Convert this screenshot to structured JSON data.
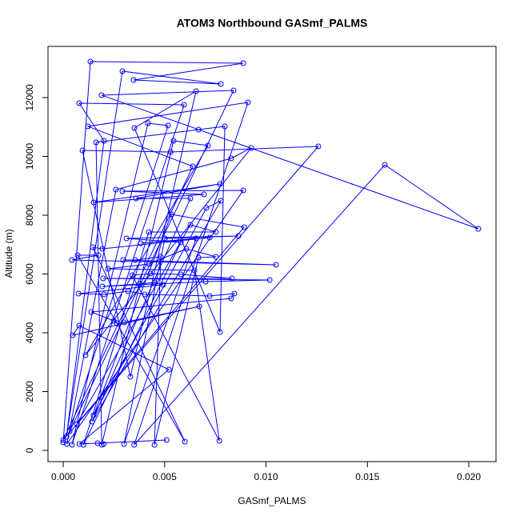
{
  "chart_data": {
    "type": "line",
    "title": "ATOM3 Northbound GASmf_PALMS",
    "x_label": "GASmf_PALMS",
    "y_label": "Altitude (m)",
    "color": "#0000ff",
    "markers": true,
    "xlim": [
      -0.00075,
      0.02134
    ],
    "ylim": [
      -381,
      13741
    ],
    "xticks": [
      {
        "value": 0,
        "label": "0.000"
      },
      {
        "value": 0.005,
        "label": "0.005"
      },
      {
        "value": 0.01,
        "label": "0.010"
      },
      {
        "value": 0.015,
        "label": "0.015"
      },
      {
        "value": 0.02,
        "label": "0.020"
      }
    ],
    "yticks": [
      0,
      2000,
      4000,
      6000,
      8000,
      10000,
      12000
    ],
    "x": [
      0.0,
      0.00134,
      0.00888,
      0.00347,
      0.00777,
      0.00292,
      0.00016,
      0.00201,
      0.00079,
      0.00596,
      0.00043,
      0.00418,
      0.00517,
      0.00032,
      0.0084,
      0.00189,
      0.02047,
      0.01586,
      0.0035,
      0.00911,
      0.00122,
      0.00639,
      0.0,
      0.01258,
      0.00529,
      0.00095,
      0.00331,
      0.00655,
      0.00351,
      0.00773,
      0.00797,
      0.00667,
      0.00162,
      0.0019,
      0.00544,
      0.00714,
      0.0011,
      0.00927,
      0.00828,
      0.0026,
      0.00018,
      0.00888,
      0.00292,
      0.00694,
      0.0015,
      0.00773,
      0.00359,
      0.00627,
      0.00142,
      0.00777,
      0.00706,
      0.0015,
      0.00533,
      0.00892,
      0.00067,
      0.00627,
      0.00753,
      0.00422,
      0.001,
      0.0058,
      0.00312,
      0.00864,
      0.00501,
      0.003,
      0.00655,
      0.00383,
      0.00722,
      0.00193,
      0.00146,
      0.006,
      0.00071,
      0.00174,
      0.00043,
      0.01049,
      0.00296,
      0.00355,
      0.00481,
      0.0045,
      0.00667,
      0.00753,
      0.00607,
      0.00422,
      0.00221,
      0.00647,
      0.0077,
      0.0034,
      0.0043,
      0.0058,
      0.00832,
      0.00197,
      0.01018,
      0.00702,
      0.00193,
      0.00379,
      0.0045,
      0.00493,
      0.00075,
      0.00201,
      0.0032,
      0.00402,
      0.00722,
      0.00844,
      0.00828,
      0.00138,
      0.00249,
      0.00264,
      0.003,
      0.00671,
      0.00047,
      0.00079,
      0.00521,
      0.0008,
      0.0051,
      0.0017,
      0.002
    ],
    "values": [
      272,
      13225,
      13170,
      12599,
      12463,
      12898,
      463,
      10531,
      11810,
      11755,
      190,
      11129,
      11048,
      653,
      12245,
      12082,
      7537,
      9714,
      190,
      11837,
      11020,
      9660,
      354,
      10340,
      10150,
      10204,
      2503,
      12218,
      10966,
      4027,
      11020,
      10912,
      10476,
      190,
      10531,
      10367,
      3238,
      10286,
      9932,
      8871,
      218,
      8844,
      8816,
      8707,
      8435,
      9061,
      8571,
      8571,
      980,
      8490,
      8245,
      1197,
      8027,
      7592,
      898,
      7673,
      7429,
      7429,
      190,
      7075,
      7211,
      7293,
      7211,
      218,
      7211,
      7048,
      7238,
      6857,
      6912,
      300,
      6639,
      6639,
      6476,
      6313,
      6476,
      6476,
      6585,
      190,
      6558,
      6585,
      6857,
      6340,
      6177,
      6122,
      327,
      5959,
      6014,
      5986,
      5850,
      5850,
      5796,
      5741,
      5578,
      5660,
      5714,
      5633,
      5333,
      5306,
      5415,
      5306,
      5252,
      5333,
      5170,
      4707,
      4408,
      4327,
      4354,
      4898,
      3918,
      4245,
      2748,
      218,
      354,
      245,
      218
    ]
  }
}
